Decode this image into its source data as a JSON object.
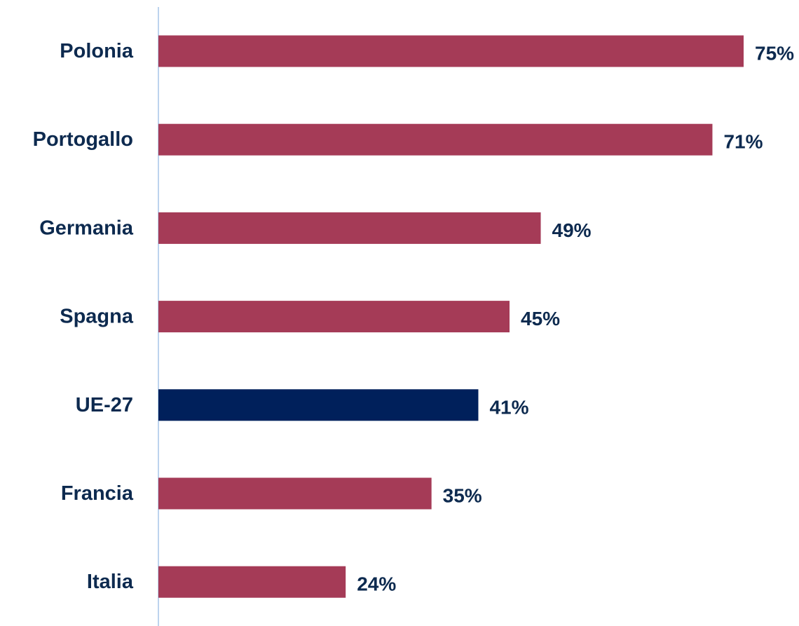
{
  "chart_data": {
    "type": "bar",
    "orientation": "horizontal",
    "categories": [
      "Polonia",
      "Portogallo",
      "Germania",
      "Spagna",
      "UE-27",
      "Francia",
      "Italia"
    ],
    "values": [
      75,
      71,
      49,
      45,
      41,
      35,
      24
    ],
    "value_labels": [
      "75%",
      "71%",
      "49%",
      "45%",
      "41%",
      "35%",
      "24%"
    ],
    "unit": "%",
    "xlim": [
      0,
      75
    ],
    "grid": false,
    "legend": "none",
    "colors": {
      "default_bar": "#a53b57",
      "highlight_bar": "#00205b",
      "text": "#0d2a4f",
      "axis": "#bcd3ee"
    },
    "highlight_category": "UE-27"
  }
}
